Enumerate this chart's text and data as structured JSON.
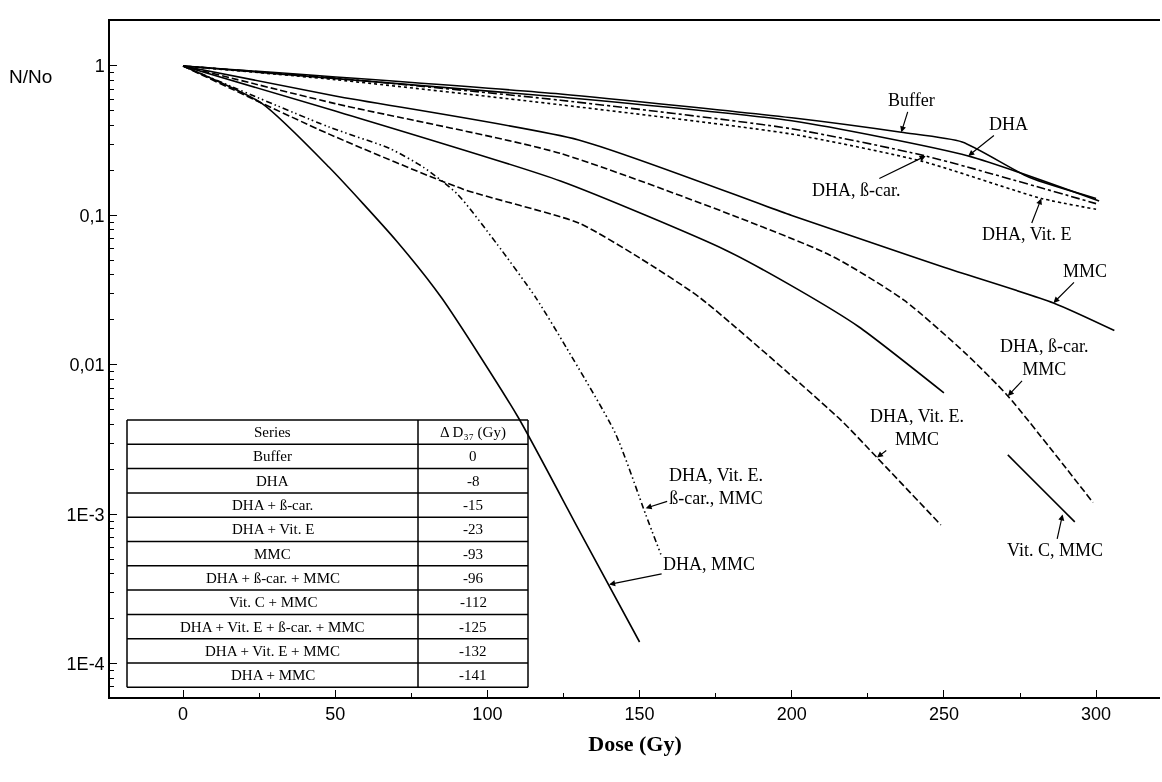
{
  "chart_data": [
    {
      "type": "line",
      "xlabel": "Dose (Gy)",
      "ylabel": "N/No",
      "log": "y",
      "xlim": [
        -24,
        321
      ],
      "ylim": [
        6e-05,
        2
      ],
      "xticks": [
        0,
        50,
        100,
        150,
        200,
        250,
        300
      ],
      "yticks": [
        1,
        {
          "value": 0.1,
          "label": "0,1"
        },
        {
          "value": 0.01,
          "label": "0,01"
        },
        {
          "value": 0.001,
          "label": "1E-3"
        },
        {
          "value": 0.0001,
          "label": "1E-4"
        }
      ],
      "marker": "none",
      "series": [
        {
          "color": "#000000",
          "line_style": "solid",
          "x": [
            0,
            124,
            200,
            236,
            256,
            278,
            300
          ],
          "values": [
            1,
            0.65,
            0.45,
            0.36,
            0.31,
            0.18,
            0.13
          ]
        },
        {
          "color": "#000000",
          "line_style": "solid",
          "x": [
            0,
            124,
            200,
            258,
            301
          ],
          "values": [
            1,
            0.62,
            0.43,
            0.25,
            0.125
          ]
        },
        {
          "color": "#000000",
          "line_style": "dashdot",
          "x": [
            0,
            50,
            124,
            200,
            244,
            300
          ],
          "values": [
            1,
            0.83,
            0.59,
            0.38,
            0.25,
            0.12
          ]
        },
        {
          "color": "#000000",
          "line_style": "dotted",
          "x": [
            0,
            50,
            124,
            200,
            243,
            282,
            300
          ],
          "values": [
            1,
            0.81,
            0.55,
            0.35,
            0.23,
            0.13,
            0.11
          ]
        },
        {
          "color": "#000000",
          "line_style": "solid",
          "x": [
            0,
            50,
            130,
            200,
            250,
            286,
            306
          ],
          "values": [
            1,
            0.63,
            0.32,
            0.1,
            0.045,
            0.026,
            0.017
          ]
        },
        {
          "color": "#000000",
          "line_style": "dashed",
          "x": [
            0,
            50,
            124,
            212,
            237,
            257,
            271,
            299
          ],
          "values": [
            1,
            0.56,
            0.26,
            0.055,
            0.027,
            0.012,
            0.0062,
            0.0012
          ]
        },
        {
          "color": "#000000",
          "line_style": "solid",
          "x": [
            0,
            50,
            124,
            178,
            202,
            222,
            250,
            260,
            271,
            293
          ],
          "values": [
            1,
            0.5,
            0.17,
            0.059,
            0.032,
            0.018,
            0.0065,
            null,
            0.0025,
            0.00089
          ]
        },
        {
          "color": "#000000",
          "line_style": "dashdotdot",
          "x": [
            0,
            48,
            68,
            79,
            90,
            103,
            116,
            126,
            142,
            152,
            157
          ],
          "values": [
            1,
            0.39,
            0.28,
            0.21,
            0.14,
            0.065,
            0.028,
            0.013,
            0.0035,
            0.001,
            0.00054
          ]
        },
        {
          "color": "#000000",
          "line_style": "dashed",
          "x": [
            0,
            48,
            92,
            130,
            150,
            170,
            216,
            228,
            249
          ],
          "values": [
            1,
            0.35,
            0.15,
            0.089,
            0.052,
            0.028,
            0.0043,
            0.0024,
            0.00085
          ]
        },
        {
          "color": "#000000",
          "line_style": "solid",
          "x": [
            0,
            26,
            48,
            70,
            85,
            110,
            130,
            150
          ],
          "values": [
            1,
            0.56,
            0.21,
            0.068,
            0.028,
            0.0045,
            0.00079,
            0.00014
          ]
        }
      ],
      "annotations": [
        {
          "text": "Buffer",
          "x": 236,
          "y": 0.36
        },
        {
          "text": "DHA",
          "x": 258,
          "y": 0.25
        },
        {
          "text": "DHA, ß-car.",
          "x": 244,
          "y": 0.25
        },
        {
          "text": "DHA, Vit. E",
          "x": 282,
          "y": 0.13
        },
        {
          "text": "MMC",
          "x": 286,
          "y": 0.026
        },
        {
          "text": "DHA, ß-car.\nMMC",
          "x": 271,
          "y": 0.0062
        },
        {
          "text": "DHA, Vit. E.\nMMC",
          "x": 228,
          "y": 0.0024
        },
        {
          "text": "Vit. C, MMC",
          "x": 289,
          "y": 0.001
        },
        {
          "text": "DHA, Vit. E.\nß-car., MMC",
          "x": 152,
          "y": 0.0011
        },
        {
          "text": "DHA, MMC",
          "x": 140,
          "y": 0.00034
        }
      ]
    },
    {
      "type": "other",
      "xlabel": "Series",
      "ylabel": "Δ D₃₇ (Gy)",
      "categories": [
        "Buffer",
        "DHA",
        "DHA + ß-car.",
        "DHA + Vit. E",
        "MMC",
        "DHA + ß-car. + MMC",
        "Vit. C + MMC",
        "DHA + Vit. E + ß-car. + MMC",
        "DHA + Vit. E + MMC",
        "DHA + MMC"
      ],
      "values": [
        0,
        -8,
        -15,
        -23,
        -93,
        -96,
        -112,
        -125,
        -132,
        -141
      ],
      "data_labels": true
    }
  ]
}
